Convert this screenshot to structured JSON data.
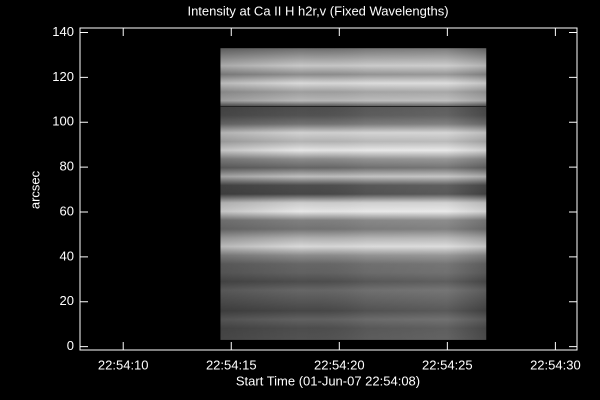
{
  "chart_data": {
    "type": "image",
    "title": "Intensity at Ca II H h2r,v (Fixed Wavelengths)",
    "x_label": "Start Time (01-Jun-07 22:54:08)",
    "y_label": "arcsec",
    "xlim": [
      0,
      23
    ],
    "ylim": [
      -1.5,
      142
    ],
    "xticks": [
      {
        "value": 2,
        "label": "22:54:10"
      },
      {
        "value": 7,
        "label": "22:54:15"
      },
      {
        "value": 12,
        "label": "22:54:20"
      },
      {
        "value": 17,
        "label": "22:54:25"
      },
      {
        "value": 22,
        "label": "22:54:30"
      }
    ],
    "yticks": [
      0,
      20,
      40,
      60,
      80,
      100,
      120,
      140
    ],
    "extent": {
      "x": [
        6.5,
        18.8
      ],
      "y": [
        3,
        133
      ]
    }
  }
}
